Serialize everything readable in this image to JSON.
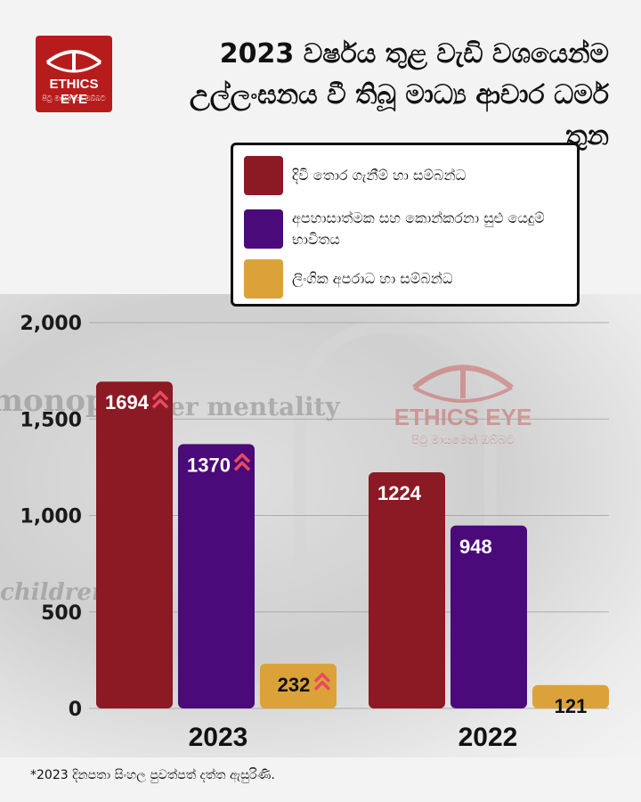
{
  "logo": {
    "brand": "ETHICS EYE",
    "tagline": "පිටු මායමෙන් ඔබ්බට"
  },
  "title": {
    "line1": "2023 වර්ෂය තුළ වැඩි වශයෙන්ම",
    "line2": "උල්ලංඝනය වී තිබූ මාධ්‍ය ආචාර ධර්ම තුන"
  },
  "colors": {
    "series1": "#8b1a24",
    "series2": "#4a0a7a",
    "series3": "#dba23a",
    "increase_arrow": "#e84a5f"
  },
  "chart_data": {
    "type": "bar",
    "categories": [
      "2023",
      "2022"
    ],
    "series": [
      {
        "name": "දිවි තොර ගැනීම් හා සම්බන්ධ",
        "values": [
          1694,
          1224
        ]
      },
      {
        "name": "අපහාසාත්මක සහ කොන්කරනා සුළු යෙදුම් භාවිතය",
        "values": [
          1370,
          948
        ]
      },
      {
        "name": "ලිංගික අපරාධ හා සම්බන්ධ",
        "values": [
          232,
          121
        ]
      }
    ],
    "data_labels": {
      "2023": [
        "1694",
        "1370",
        "232"
      ],
      "2022": [
        "1224",
        "948",
        "121"
      ]
    },
    "increase_markers": {
      "2023": [
        true,
        true,
        true
      ],
      "2022": [
        false,
        false,
        false
      ]
    },
    "ylim": [
      0,
      2000
    ],
    "yticks": [
      0,
      500,
      1000,
      1500,
      2000
    ],
    "ytick_labels": [
      "0",
      "500",
      "1,000",
      "1,500",
      "2,000"
    ],
    "grid": true,
    "legend_position": "top-right"
  },
  "footnote": "*2023 දිනපතා සිංහල පුවත්පත් දත්ත ඇසුරිණි."
}
